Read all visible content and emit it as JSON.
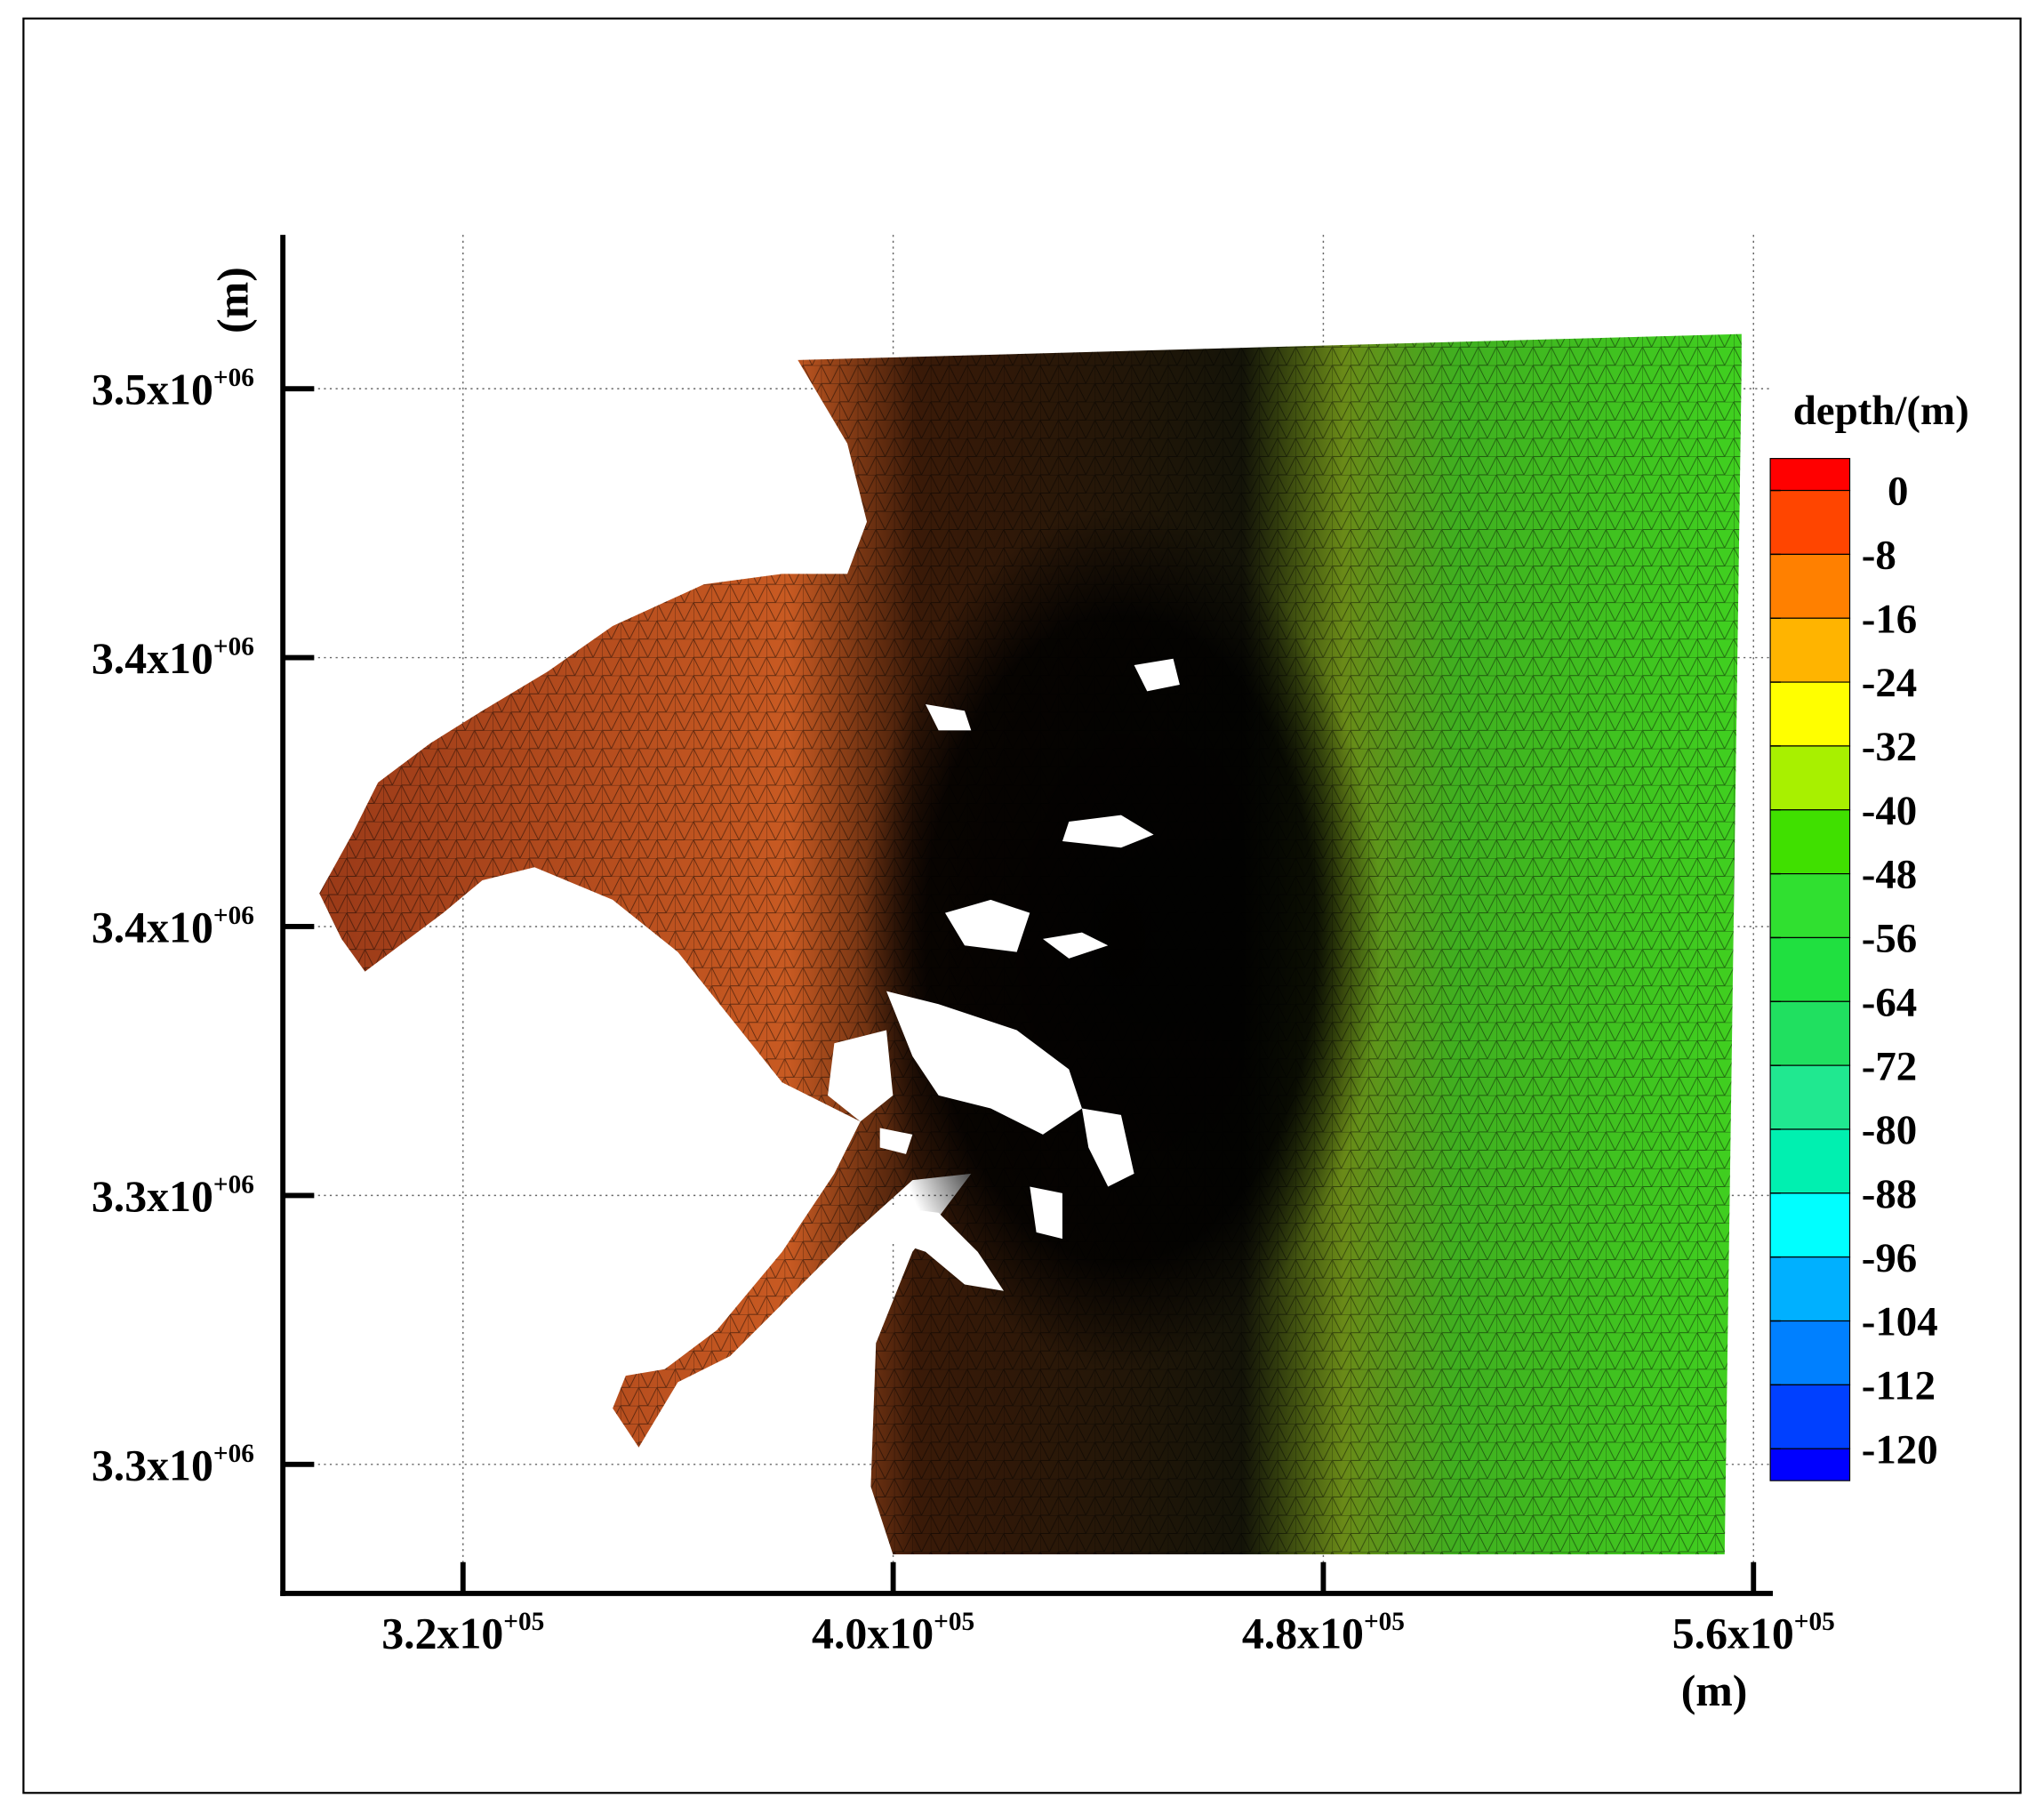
{
  "chart_data": {
    "type": "mesh",
    "x_label": "(m)",
    "y_label": "(m)",
    "colorbar_title": "depth/(m)",
    "xlim": [
      286500,
      563600
    ],
    "ylim": [
      3276000,
      3528600
    ],
    "xticks": [
      {
        "value": 320000,
        "label": "3.2x10",
        "exponent": "+05"
      },
      {
        "value": 400000,
        "label": "4.0x10",
        "exponent": "+05"
      },
      {
        "value": 480000,
        "label": "4.8x10",
        "exponent": "+05"
      },
      {
        "value": 560000,
        "label": "5.6x10",
        "exponent": "+05"
      }
    ],
    "yticks": [
      {
        "value": 3500000,
        "label": "3.5x10",
        "exponent": "+06"
      },
      {
        "value": 3450000,
        "label": "3.4x10",
        "exponent": "+06"
      },
      {
        "value": 3400000,
        "label": "3.4x10",
        "exponent": "+06"
      },
      {
        "value": 3350000,
        "label": "3.3x10",
        "exponent": "+06"
      },
      {
        "value": 3300000,
        "label": "3.3x10",
        "exponent": "+06"
      }
    ],
    "grid": true,
    "colorbar": {
      "levels": [
        0,
        -8,
        -16,
        -24,
        -32,
        -40,
        -48,
        -56,
        -64,
        -72,
        -80,
        -88,
        -96,
        -104,
        -112,
        -120
      ],
      "colors": [
        "#ff0000",
        "#ff4500",
        "#ff8000",
        "#ffb400",
        "#ffff00",
        "#a8f000",
        "#40e000",
        "#30e030",
        "#20e040",
        "#20e060",
        "#20e890",
        "#00f0b0",
        "#00ffff",
        "#00b0ff",
        "#0080ff",
        "#0040ff",
        "#0000ff"
      ]
    }
  }
}
